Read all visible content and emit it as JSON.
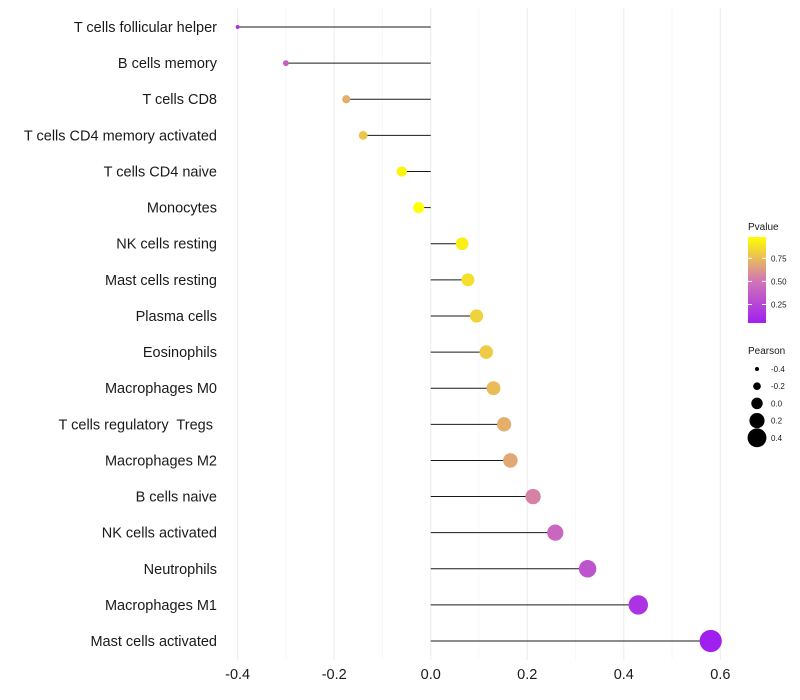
{
  "chart_data": {
    "type": "lollipop",
    "xlabel": "",
    "ylabel": "",
    "xlim": [
      -0.42,
      0.62
    ],
    "xticks": [
      -0.4,
      -0.2,
      0.0,
      0.2,
      0.4,
      0.6
    ],
    "xtick_labels": [
      "-0.4",
      "-0.2",
      "0.0",
      "0.2",
      "0.4",
      "0.6"
    ],
    "categories": [
      "T cells follicular helper",
      "B cells memory",
      "T cells CD8",
      "T cells CD4 memory activated",
      "T cells CD4 naive",
      "Monocytes",
      "NK cells resting",
      "Mast cells resting",
      "Plasma cells",
      "Eosinophils",
      "Macrophages M0",
      "T cells regulatory  Tregs ",
      "Macrophages M2",
      "B cells naive",
      "NK cells activated",
      "Neutrophils",
      "Macrophages M1",
      "Mast cells activated"
    ],
    "pearson": [
      -0.4,
      -0.3,
      -0.175,
      -0.14,
      -0.06,
      -0.025,
      0.065,
      0.077,
      0.095,
      0.115,
      0.13,
      0.152,
      0.165,
      0.212,
      0.258,
      0.325,
      0.43,
      0.58
    ],
    "pvalue": [
      0.15,
      0.38,
      0.7,
      0.78,
      0.95,
      0.98,
      0.93,
      0.87,
      0.83,
      0.8,
      0.75,
      0.7,
      0.68,
      0.55,
      0.42,
      0.32,
      0.15,
      0.05
    ],
    "legend_color": {
      "title": "Pvalue",
      "range": [
        0.05,
        0.98
      ],
      "ticks": [
        0.25,
        0.5,
        0.75
      ],
      "tick_labels": [
        "0.25",
        "0.50",
        "0.75"
      ],
      "low_color": "#a020f0",
      "mid_color": "#d278b4",
      "high_color": "#ffff00"
    },
    "legend_size": {
      "title": "Pearson",
      "values": [
        -0.4,
        -0.2,
        0.0,
        0.2,
        0.4
      ],
      "labels": [
        "-0.4",
        "-0.2",
        "0.0",
        "0.2",
        "0.4"
      ]
    },
    "legend_position": "right"
  }
}
